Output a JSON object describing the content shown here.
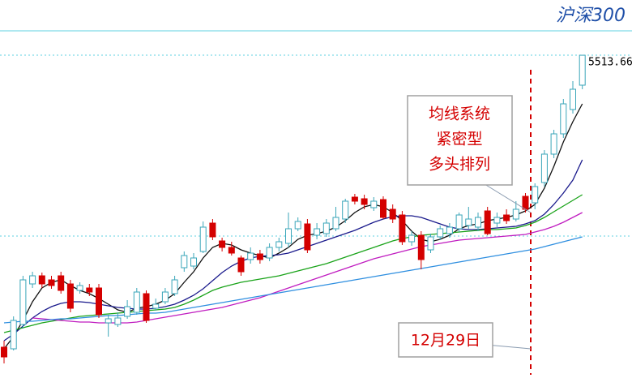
{
  "chart_data": {
    "type": "candlestick",
    "title": "沪深300",
    "ylim": [
      3444,
      5654
    ],
    "up_color": "#3aa6b9",
    "down_color": "#d40000",
    "open": [
      3714,
      3704,
      3854,
      4104,
      4154,
      4129,
      4154,
      4104,
      4064,
      4079,
      4079,
      3864,
      3854,
      3904,
      3929,
      4044,
      3954,
      3994,
      4044,
      4204,
      4214,
      4304,
      4479,
      4369,
      4329,
      4264,
      4254,
      4289,
      4264,
      4329,
      4354,
      4444,
      4474,
      4404,
      4414,
      4444,
      4504,
      4639,
      4629,
      4574,
      4624,
      4564,
      4529,
      4364,
      4404,
      4314,
      4394,
      4414,
      4444,
      4464,
      4454,
      4554,
      4479,
      4529,
      4504,
      4644,
      4604,
      4729,
      4904,
      5029,
      5179,
      5329
    ],
    "close": [
      3654,
      3879,
      4129,
      4154,
      4104,
      4094,
      4064,
      3954,
      4094,
      4054,
      3914,
      3889,
      3894,
      3964,
      4054,
      3879,
      3979,
      4054,
      4129,
      4279,
      4264,
      4454,
      4394,
      4329,
      4294,
      4179,
      4294,
      4254,
      4329,
      4364,
      4444,
      4489,
      4314,
      4444,
      4479,
      4514,
      4614,
      4614,
      4594,
      4614,
      4514,
      4504,
      4364,
      4404,
      4254,
      4394,
      4444,
      4454,
      4529,
      4504,
      4514,
      4414,
      4514,
      4494,
      4564,
      4564,
      4704,
      4904,
      5029,
      5214,
      5304,
      5513.66
    ],
    "high": [
      3754,
      3904,
      4154,
      4179,
      4174,
      4154,
      4179,
      4129,
      4114,
      4104,
      4104,
      3914,
      3929,
      4004,
      4079,
      4064,
      4014,
      4079,
      4154,
      4304,
      4294,
      4489,
      4504,
      4389,
      4364,
      4279,
      4329,
      4314,
      4354,
      4389,
      4544,
      4514,
      4504,
      4479,
      4504,
      4579,
      4629,
      4659,
      4654,
      4639,
      4644,
      4594,
      4554,
      4429,
      4429,
      4414,
      4464,
      4479,
      4544,
      4579,
      4544,
      4579,
      4544,
      4564,
      4614,
      4664,
      4724,
      4929,
      5054,
      5244,
      5354,
      5513.66
    ],
    "low": [
      3614,
      3694,
      3829,
      4079,
      4079,
      4074,
      4044,
      3929,
      4044,
      4029,
      3894,
      3779,
      3839,
      3889,
      3914,
      3864,
      3939,
      3979,
      4029,
      4179,
      4194,
      4294,
      4374,
      4304,
      4279,
      4154,
      4229,
      4229,
      4244,
      4304,
      4329,
      4429,
      4294,
      4379,
      4394,
      4429,
      4479,
      4594,
      4564,
      4554,
      4504,
      4479,
      4344,
      4339,
      4194,
      4294,
      4374,
      4389,
      4424,
      4444,
      4429,
      4404,
      4454,
      4474,
      4489,
      4544,
      4564,
      4704,
      4879,
      5004,
      5154,
      5304
    ],
    "series": [
      {
        "color": "#111111",
        "values": [
          3704,
          3779,
          3879,
          3994,
          4079,
          4114,
          4129,
          4094,
          4064,
          4044,
          4014,
          3979,
          3944,
          3929,
          3954,
          3964,
          3979,
          4004,
          4044,
          4114,
          4179,
          4264,
          4329,
          4354,
          4344,
          4314,
          4294,
          4279,
          4264,
          4294,
          4329,
          4379,
          4404,
          4414,
          4429,
          4454,
          4494,
          4544,
          4579,
          4594,
          4579,
          4544,
          4494,
          4429,
          4379,
          4364,
          4379,
          4404,
          4444,
          4464,
          4474,
          4494,
          4504,
          4514,
          4529,
          4554,
          4594,
          4694,
          4829,
          4979,
          5104,
          5214
        ]
      },
      {
        "color": "#1a1a8c",
        "values": [
          3754,
          3794,
          3844,
          3894,
          3934,
          3964,
          3984,
          3994,
          3994,
          3989,
          3979,
          3969,
          3959,
          3954,
          3949,
          3949,
          3954,
          3964,
          3979,
          4004,
          4034,
          4074,
          4124,
          4174,
          4214,
          4244,
          4264,
          4274,
          4279,
          4284,
          4294,
          4314,
          4334,
          4354,
          4374,
          4394,
          4414,
          4434,
          4459,
          4484,
          4504,
          4519,
          4524,
          4524,
          4514,
          4494,
          4474,
          4454,
          4444,
          4439,
          4439,
          4444,
          4449,
          4454,
          4459,
          4474,
          4494,
          4534,
          4594,
          4664,
          4744,
          4869
        ]
      },
      {
        "color": "#19a319",
        "values": [
          3804,
          3819,
          3834,
          3849,
          3864,
          3874,
          3884,
          3894,
          3904,
          3909,
          3914,
          3919,
          3924,
          3929,
          3934,
          3939,
          3944,
          3949,
          3959,
          3979,
          4004,
          4034,
          4064,
          4084,
          4099,
          4114,
          4124,
          4134,
          4144,
          4154,
          4169,
          4184,
          4199,
          4214,
          4229,
          4249,
          4269,
          4289,
          4309,
          4329,
          4349,
          4369,
          4384,
          4394,
          4404,
          4409,
          4414,
          4419,
          4424,
          4429,
          4434,
          4439,
          4439,
          4444,
          4449,
          4464,
          4484,
          4514,
          4549,
          4584,
          4619,
          4654
        ]
      },
      {
        "color": "#c01cc0",
        "values": [
          null,
          null,
          null,
          3894,
          3889,
          3884,
          3879,
          3874,
          3869,
          3869,
          3864,
          3864,
          3864,
          3864,
          3869,
          3879,
          3889,
          3899,
          3909,
          3919,
          3929,
          3939,
          3949,
          3959,
          3974,
          3989,
          4004,
          4019,
          4039,
          4059,
          4079,
          4099,
          4119,
          4139,
          4159,
          4179,
          4199,
          4219,
          4239,
          4259,
          4274,
          4289,
          4304,
          4319,
          4334,
          4344,
          4354,
          4364,
          4374,
          4379,
          4384,
          4389,
          4394,
          4399,
          4404,
          4409,
          4424,
          4439,
          4459,
          4484,
          4514,
          4544
        ]
      },
      {
        "color": "#2f8fe0",
        "values": [
          3864,
          3869,
          3874,
          3874,
          3879,
          3884,
          3889,
          3889,
          3894,
          3899,
          3904,
          3909,
          3909,
          3914,
          3919,
          3924,
          3924,
          3929,
          3939,
          3949,
          3959,
          3969,
          3979,
          3989,
          3999,
          4009,
          4019,
          4029,
          4039,
          4049,
          4059,
          4069,
          4079,
          4089,
          4099,
          4109,
          4119,
          4129,
          4139,
          4149,
          4159,
          4169,
          4179,
          4189,
          4199,
          4209,
          4219,
          4229,
          4239,
          4249,
          4259,
          4269,
          4279,
          4289,
          4299,
          4309,
          4319,
          4334,
          4349,
          4364,
          4379,
          4394
        ]
      }
    ],
    "annotations": {
      "pattern_lines": [
        "均线系统",
        "紧密型",
        "多头排列"
      ],
      "date": "12月29日"
    }
  }
}
